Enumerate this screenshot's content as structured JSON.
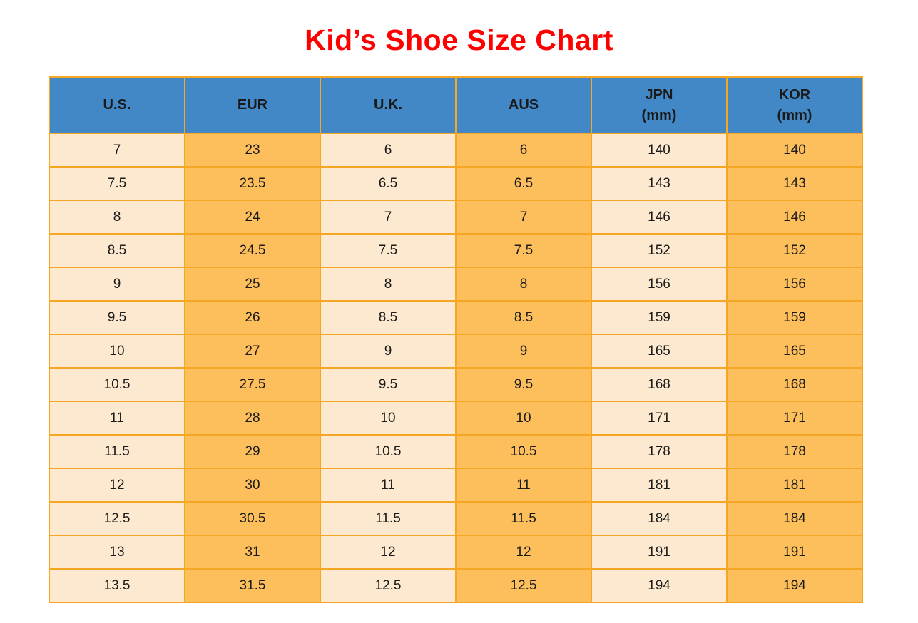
{
  "chart_data": {
    "type": "table",
    "title": "Kid’s Shoe Size Chart",
    "columns": [
      {
        "label": "U.S.",
        "sublabel": ""
      },
      {
        "label": "EUR",
        "sublabel": ""
      },
      {
        "label": "U.K.",
        "sublabel": ""
      },
      {
        "label": "AUS",
        "sublabel": ""
      },
      {
        "label": "JPN",
        "sublabel": "(mm)"
      },
      {
        "label": "KOR",
        "sublabel": "(mm)"
      }
    ],
    "rows": [
      [
        "7",
        "23",
        "6",
        "6",
        "140",
        "140"
      ],
      [
        "7.5",
        "23.5",
        "6.5",
        "6.5",
        "143",
        "143"
      ],
      [
        "8",
        "24",
        "7",
        "7",
        "146",
        "146"
      ],
      [
        "8.5",
        "24.5",
        "7.5",
        "7.5",
        "152",
        "152"
      ],
      [
        "9",
        "25",
        "8",
        "8",
        "156",
        "156"
      ],
      [
        "9.5",
        "26",
        "8.5",
        "8.5",
        "159",
        "159"
      ],
      [
        "10",
        "27",
        "9",
        "9",
        "165",
        "165"
      ],
      [
        "10.5",
        "27.5",
        "9.5",
        "9.5",
        "168",
        "168"
      ],
      [
        "11",
        "28",
        "10",
        "10",
        "171",
        "171"
      ],
      [
        "11.5",
        "29",
        "10.5",
        "10.5",
        "178",
        "178"
      ],
      [
        "12",
        "30",
        "11",
        "11",
        "181",
        "181"
      ],
      [
        "12.5",
        "30.5",
        "11.5",
        "11.5",
        "184",
        "184"
      ],
      [
        "13",
        "31",
        "12",
        "12",
        "191",
        "191"
      ],
      [
        "13.5",
        "31.5",
        "12.5",
        "12.5",
        "194",
        "194"
      ]
    ],
    "layout": {
      "grid": "all-borders",
      "legend": "none",
      "column_color_pattern": [
        "light",
        "orange",
        "light",
        "orange",
        "light",
        "orange"
      ]
    }
  },
  "colors": {
    "title": "#ff0000",
    "header_bg": "#4388c6",
    "light_col_bg": "#fce9cf",
    "orange_col_bg": "#fdbe5c",
    "border": "#f5a623"
  }
}
